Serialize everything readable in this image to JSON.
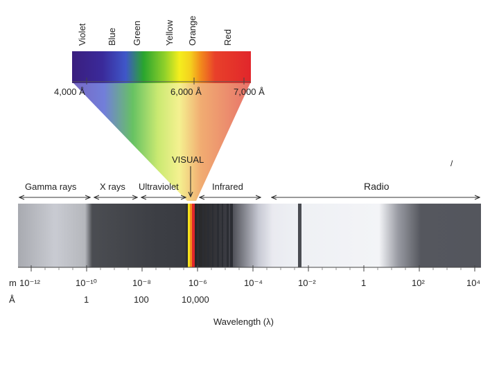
{
  "visible_spectrum": {
    "colors": [
      {
        "name": "Violet",
        "hex": "#3a1e7e"
      },
      {
        "name": "Blue",
        "hex": "#3f57c9"
      },
      {
        "name": "Green",
        "hex": "#2aa52e"
      },
      {
        "name": "Yellow",
        "hex": "#f4ee1e"
      },
      {
        "name": "Orange",
        "hex": "#f28a1c"
      },
      {
        "name": "Red",
        "hex": "#e1262b"
      }
    ],
    "wavelength_labels": [
      "4,000 Å",
      "6,000 Å",
      "7,000 Å"
    ],
    "visual_label": "VISUAL"
  },
  "regions": [
    {
      "label": "Gamma rays"
    },
    {
      "label": "X rays"
    },
    {
      "label": "Ultraviolet"
    },
    {
      "label": "Infrared"
    },
    {
      "label": "Radio"
    }
  ],
  "axis": {
    "meters_prefix": "m",
    "meter_ticks": [
      "10⁻¹²",
      "10⁻¹⁰",
      "10⁻⁸",
      "10⁻⁶",
      "10⁻⁴",
      "10⁻²",
      "1",
      "10²",
      "10⁴"
    ],
    "angstrom_prefix": "Å",
    "angstrom_ticks": [
      "1",
      "100",
      "10,000"
    ],
    "title": "Wavelength (λ)"
  },
  "stray_mark": "/"
}
